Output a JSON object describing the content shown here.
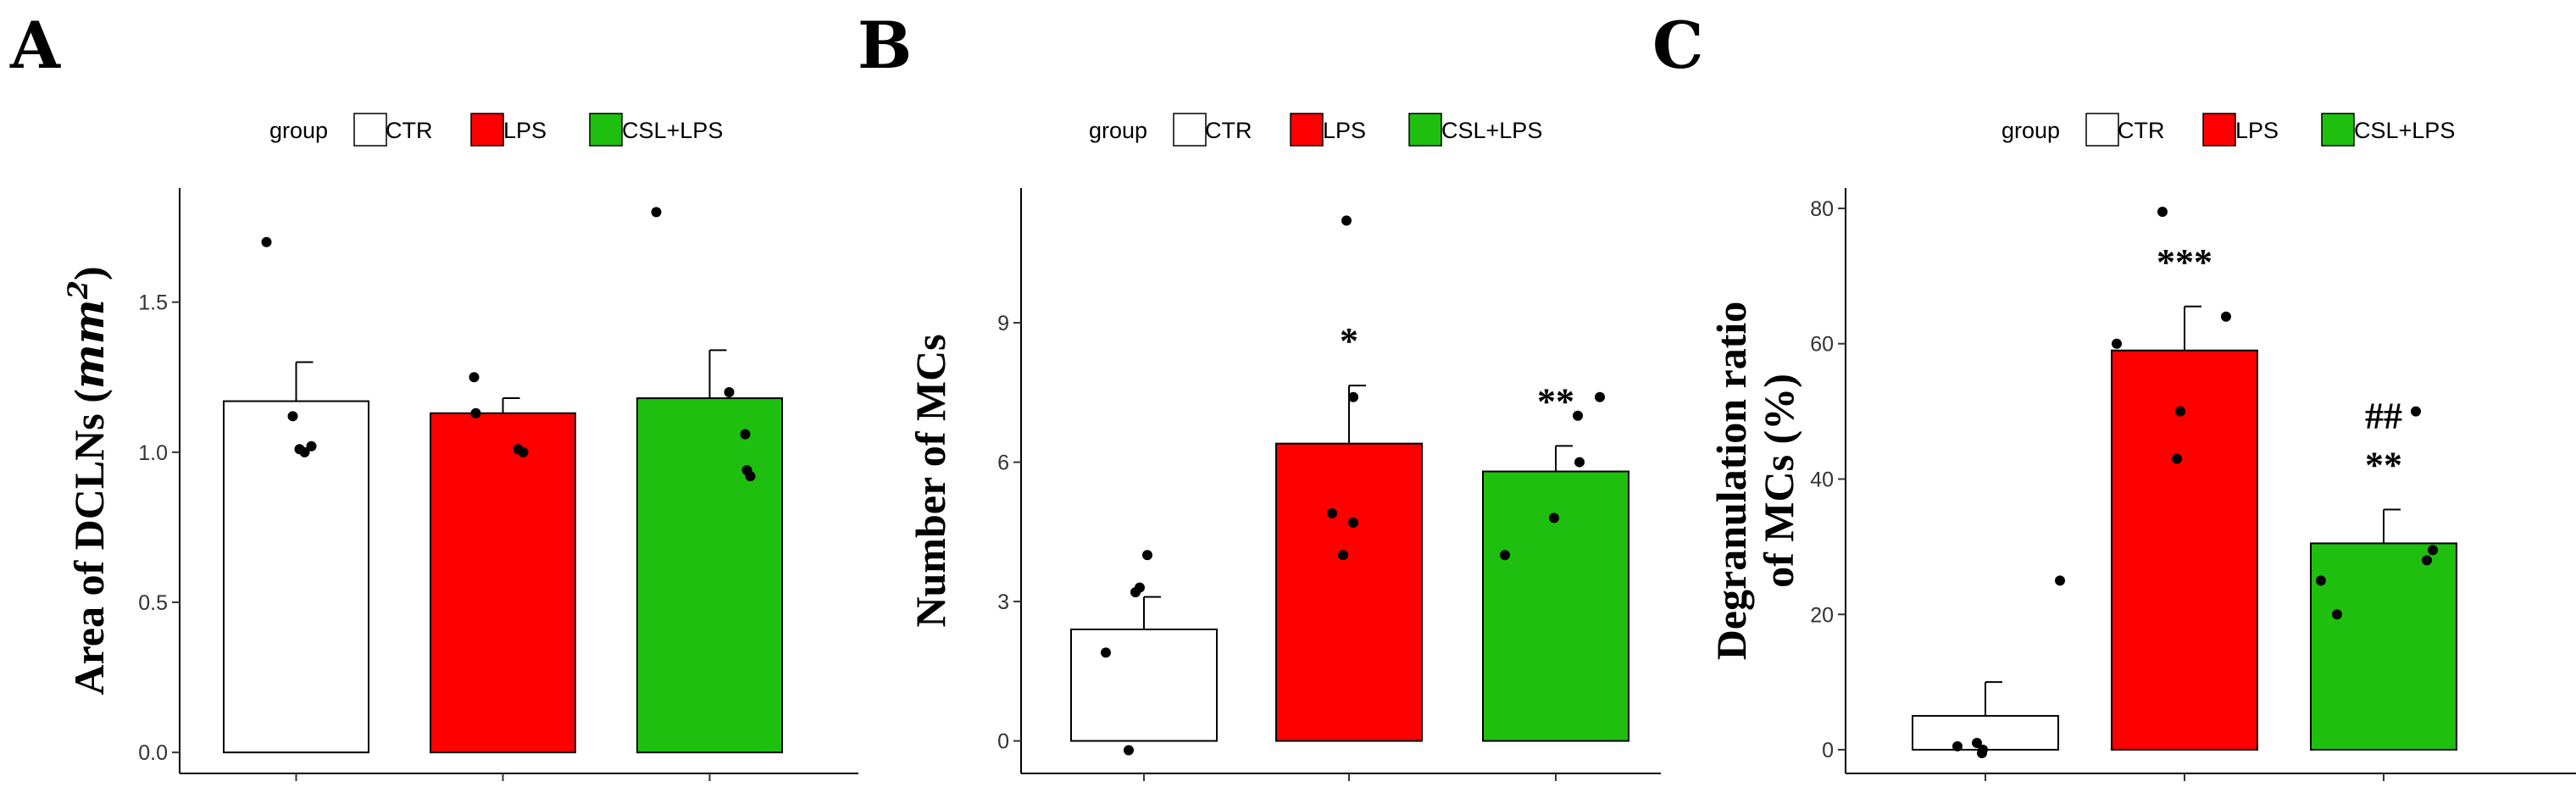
{
  "figure": {
    "legend": {
      "title": "group",
      "groups": [
        {
          "label": "CTR",
          "color": "#FFFFFF"
        },
        {
          "label": "LPS",
          "color": "#FF0000"
        },
        {
          "label": "CSL+LPS",
          "color": "#1FBF0F"
        }
      ]
    }
  },
  "chart_data": [
    {
      "panel": "A",
      "type": "bar",
      "title": "",
      "ylabel": "Area of DCLNs",
      "ylabel_unit_base": "mm",
      "ylabel_unit_exp": "2",
      "categories": [
        "CTR",
        "LPS",
        "CSL+LPS"
      ],
      "values": [
        1.17,
        1.13,
        1.18
      ],
      "errors": [
        0.13,
        0.05,
        0.16
      ],
      "points": [
        [
          1.7,
          1.12,
          1.01,
          1.0,
          1.02
        ],
        [
          1.25,
          1.13,
          1.01,
          1.0
        ],
        [
          1.8,
          1.2,
          1.06,
          0.94,
          0.92
        ]
      ],
      "yticks": [
        "0.0",
        "0.5",
        "1.0",
        "1.5"
      ],
      "ylim": [
        -0.07,
        1.88
      ],
      "annotations": [
        [],
        [],
        []
      ]
    },
    {
      "panel": "B",
      "type": "bar",
      "title": "",
      "ylabel": "Number of MCs",
      "categories": [
        "CTR",
        "LPS",
        "CSL+LPS"
      ],
      "values": [
        2.4,
        6.4,
        5.8
      ],
      "errors": [
        0.7,
        1.25,
        0.55
      ],
      "points": [
        [
          -0.2,
          1.9,
          3.2,
          3.3,
          4.0
        ],
        [
          11.2,
          7.4,
          4.9,
          4.7,
          4.0
        ],
        [
          7.4,
          7.0,
          6.0,
          4.8,
          4.0
        ]
      ],
      "yticks": [
        "0",
        "3",
        "6",
        "9"
      ],
      "ylim": [
        -0.7,
        11.9
      ],
      "annotations": [
        [],
        [
          "*"
        ],
        [
          "**"
        ]
      ]
    },
    {
      "panel": "C",
      "type": "bar",
      "title": "",
      "ylabel": "Degranulation ratio",
      "ylabel2": "of MCs (%)",
      "categories": [
        "CTR",
        "LPS",
        "CSL+LPS"
      ],
      "values": [
        5.0,
        59.0,
        30.5
      ],
      "errors": [
        5.0,
        6.5,
        5.0
      ],
      "points": [
        [
          25.0,
          1.0,
          0.5,
          -0.5,
          0.0
        ],
        [
          79.5,
          64.0,
          60.0,
          50.0,
          43.0
        ],
        [
          50.0,
          29.5,
          28.0,
          25.0,
          20.0
        ]
      ],
      "yticks": [
        "0",
        "20",
        "40",
        "60",
        "80"
      ],
      "ylim": [
        -3.5,
        83.0
      ],
      "annotations": [
        [],
        [
          "***"
        ],
        [
          "##",
          "**"
        ]
      ]
    }
  ]
}
